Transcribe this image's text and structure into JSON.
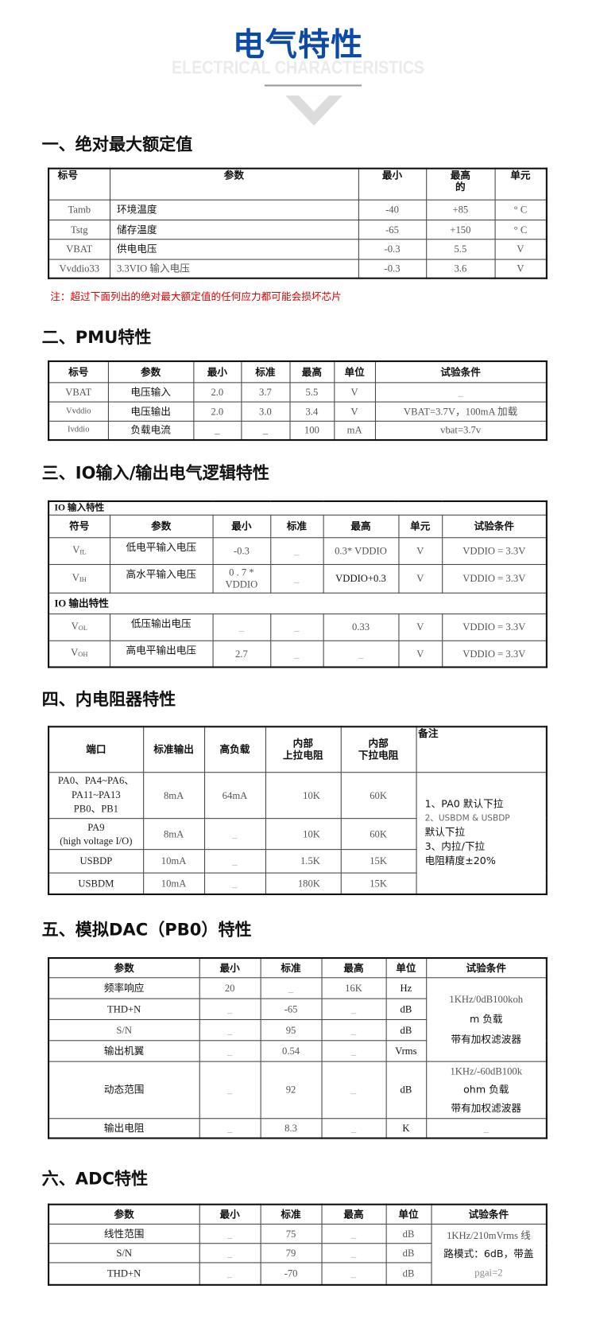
{
  "header": {
    "title": "电气特性",
    "subtitle": "ELECTRICAL CHARACTERISTICS"
  },
  "s1": {
    "heading": "一、绝对最大额定值",
    "headers": [
      "标号",
      "参数",
      "最小",
      "最高\n的",
      "单元"
    ],
    "rows": [
      [
        "Tamb",
        "环境温度",
        "-40",
        "+85",
        "° C"
      ],
      [
        "Tstg",
        "储存温度",
        "-65",
        "+150",
        "° C"
      ],
      [
        "VBAT",
        "供电电压",
        "-0.3",
        "5.5",
        "V"
      ],
      [
        "Vvddio33",
        "3.3VIO 输入电压",
        "-0.3",
        "3.6",
        "V"
      ]
    ],
    "note": "注：超过下面列出的绝对最大额定值的任何应力都可能会损坏芯片"
  },
  "s2": {
    "heading": "二、PMU特性",
    "headers": [
      "标号",
      "参数",
      "最小",
      "标准",
      "最高",
      "单位",
      "试验条件"
    ],
    "rows": [
      [
        "VBAT",
        "电压输入",
        "2.0",
        "3.7",
        "5.5",
        "V",
        "_"
      ],
      [
        "Vvddio",
        "电压输出",
        "2.0",
        "3.0",
        "3.4",
        "V",
        "VBAT=3.7V，100mA 加载"
      ],
      [
        "Ivddio",
        "负载电流",
        "_",
        "_",
        "100",
        "mA",
        "vbat=3.7v"
      ]
    ]
  },
  "s3": {
    "heading": "三、IO输入/输出电气逻辑特性",
    "input_title": "IO 输入特性",
    "output_title": "IO 输出特性",
    "headers": [
      "符号",
      "参数",
      "最小",
      "标准",
      "最高",
      "单元",
      "试验条件"
    ],
    "rows": [
      [
        "V",
        "IL",
        "低电平输入电压",
        "-0.3",
        "_",
        "0.3* VDDIO",
        "V",
        "VDDIO = 3.3V"
      ],
      [
        "V",
        "IH",
        "高水平输入电压",
        "0 . 7 * VDDIO",
        "_",
        "VDDIO+0.3",
        "V",
        "VDDIO = 3.3V"
      ],
      [
        "V",
        "OL",
        "低压输出电压",
        "_",
        "_",
        "0.33",
        "V",
        "VDDIO = 3.3V"
      ],
      [
        "V",
        "OH",
        "高电平输出电压",
        "2.7",
        "_",
        "_",
        "V",
        "VDDIO = 3.3V"
      ]
    ]
  },
  "s4": {
    "heading": "四、内电阻器特性",
    "headers": [
      "端口",
      "标准输出",
      "高负载",
      "内部\n上拉电阻",
      "内部\n下拉电阻",
      "备注"
    ],
    "rows": [
      [
        "PA0、PA4~PA6、\nPA11~PA13\nPB0、PB1",
        "8mA",
        "64mA",
        "10K",
        "60K"
      ],
      [
        "PA9\n(high voltage I/O)",
        "8mA",
        "_",
        "10K",
        "60K"
      ],
      [
        "USBDP",
        "10mA",
        "_",
        "1.5K",
        "15K"
      ],
      [
        "USBDM",
        "10mA",
        "_",
        "180K",
        "15K"
      ]
    ],
    "remarks": [
      "1、PA0 默认下拉",
      "2、USBDM & USBDP",
      "默认下拉",
      "3、内拉/下拉",
      "电阻精度±20%"
    ]
  },
  "s5": {
    "heading": "五、模拟DAC（PB0）特性",
    "headers": [
      "参数",
      "最小",
      "标准",
      "最高",
      "单位",
      "试验条件"
    ],
    "rows": [
      [
        "频率响应",
        "20",
        "_",
        "16K",
        "Hz"
      ],
      [
        "THD+N",
        "_",
        "-65",
        "_",
        "dB"
      ],
      [
        "S/N",
        "_",
        "95",
        "_",
        "dB"
      ],
      [
        "输出机翼",
        "_",
        "0.54",
        "_",
        "Vrms"
      ],
      [
        "动态范围",
        "_",
        "92",
        "_",
        "dB"
      ],
      [
        "输出电阻",
        "_",
        "8.3",
        "_",
        "K"
      ]
    ],
    "cond1": [
      "1KHz/0dB100koh",
      "m 负载",
      "带有加权滤波器"
    ],
    "cond2": [
      "1KHz/-60dB100k",
      "ohm 负载",
      "带有加权滤波器"
    ],
    "cond3": "_"
  },
  "s6": {
    "heading": "六、ADC特性",
    "headers": [
      "参数",
      "最小",
      "标准",
      "最高",
      "单位",
      "试验条件"
    ],
    "rows": [
      [
        "线性范围",
        "_",
        "75",
        "_",
        "dB"
      ],
      [
        "S/N",
        "_",
        "79",
        "_",
        "dB"
      ],
      [
        "THD+N",
        "_",
        "-70",
        "_",
        "dB"
      ]
    ],
    "cond": [
      "1KHz/210mVrms 线",
      "路模式：6dB，带盖",
      "pgai=2"
    ]
  },
  "colors": {
    "title": "#0b4aa6",
    "note": "#e00000"
  }
}
